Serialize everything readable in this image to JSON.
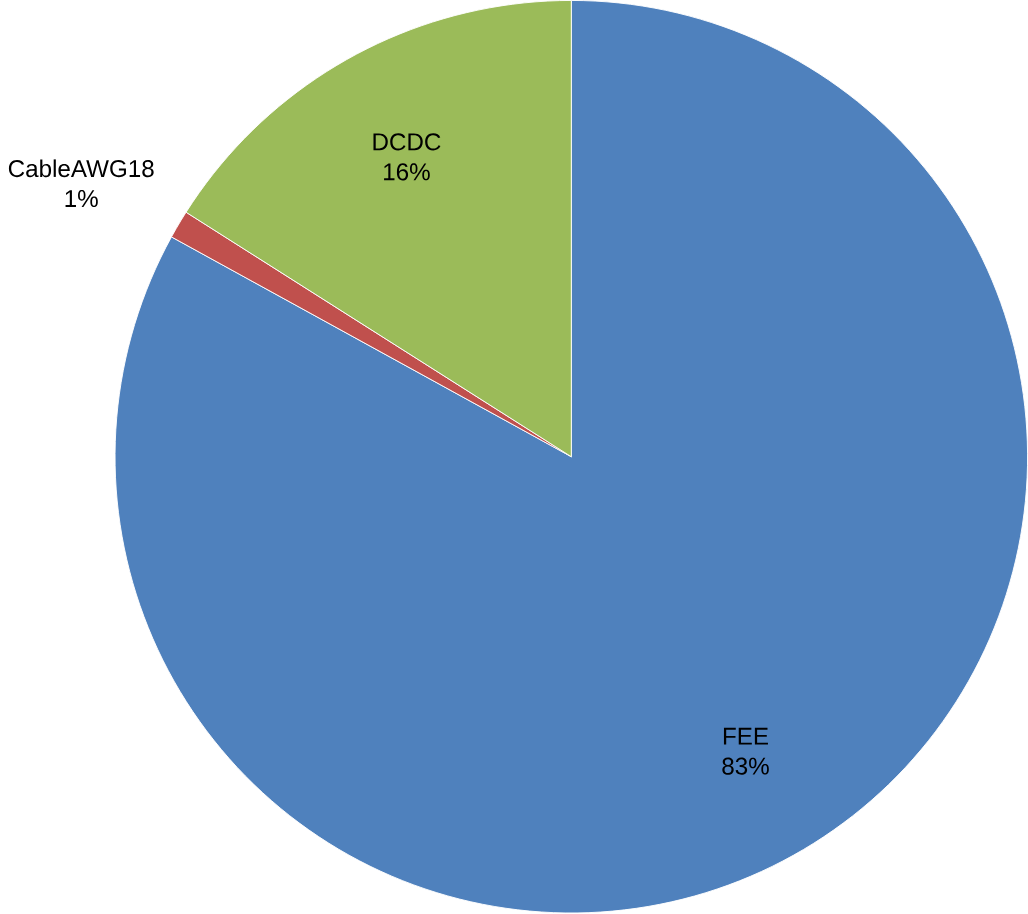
{
  "chart_data": {
    "type": "pie",
    "categories": [
      "FEE",
      "CableAWG18",
      "DCDC"
    ],
    "values": [
      83,
      1,
      16
    ],
    "value_labels": [
      "83%",
      "1%",
      "16%"
    ],
    "colors": [
      "#4f81bd",
      "#c0504d",
      "#9bbb59"
    ]
  }
}
